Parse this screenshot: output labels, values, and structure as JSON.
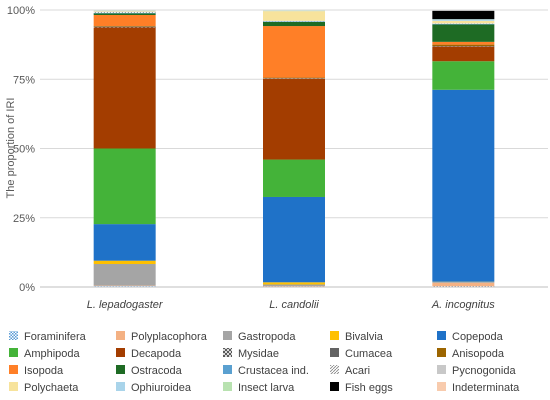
{
  "chart_data": {
    "type": "bar",
    "stacked": true,
    "title": "",
    "xlabel": "",
    "ylabel": "The proportion of IRI",
    "ylim": [
      0,
      100
    ],
    "yticks": [
      "0%",
      "25%",
      "50%",
      "75%",
      "100%"
    ],
    "grid": true,
    "legend": "bottom",
    "categories": [
      "L. lepadogaster",
      "L. candolii",
      "A. incognitus"
    ],
    "series": [
      {
        "name": "Foraminifera",
        "color": "#5b9bd5",
        "pattern": "checker",
        "values": [
          0.3,
          0.1,
          0.2
        ]
      },
      {
        "name": "Polyplacophora",
        "color": "#f4b183",
        "values": [
          0.2,
          0.2,
          1.3
        ]
      },
      {
        "name": "Gastropoda",
        "color": "#a5a5a5",
        "values": [
          7.8,
          0.6,
          0.3
        ]
      },
      {
        "name": "Bivalvia",
        "color": "#ffc000",
        "values": [
          1.2,
          0.8,
          0.1
        ]
      },
      {
        "name": "Copepoda",
        "color": "#1f72c8",
        "values": [
          13.2,
          30.8,
          69.3
        ]
      },
      {
        "name": "Amphipoda",
        "color": "#44b339",
        "values": [
          27.3,
          13.5,
          10.3
        ]
      },
      {
        "name": "Decapoda",
        "color": "#a33d00",
        "values": [
          43.7,
          29.2,
          5.3
        ]
      },
      {
        "name": "Mysidae",
        "color": "#404040",
        "pattern": "cross",
        "values": [
          0.2,
          0.1,
          0.1
        ]
      },
      {
        "name": "Cumacea",
        "color": "#636363",
        "values": [
          0.1,
          0.1,
          0.1
        ]
      },
      {
        "name": "Anisopoda",
        "color": "#9c6500",
        "values": [
          0.2,
          0.2,
          0.5
        ]
      },
      {
        "name": "Isopoda",
        "color": "#ff7f27",
        "values": [
          4.0,
          18.6,
          1.0
        ]
      },
      {
        "name": "Ostracoda",
        "color": "#1e6b24",
        "values": [
          0.6,
          1.5,
          6.3
        ]
      },
      {
        "name": "Crustacea ind.",
        "color": "#5aa0d0",
        "values": [
          0.2,
          0.2,
          0.2
        ]
      },
      {
        "name": "Acari",
        "color": "#b0b0b0",
        "pattern": "diag",
        "values": [
          0.3,
          0.1,
          0.1
        ]
      },
      {
        "name": "Pycnogonida",
        "color": "#c8c8c8",
        "values": [
          0.1,
          0.1,
          0.1
        ]
      },
      {
        "name": "Polychaeta",
        "color": "#f7e39c",
        "values": [
          0.2,
          3.5,
          0.9
        ]
      },
      {
        "name": "Ophiuroidea",
        "color": "#a9d4ea",
        "values": [
          0.1,
          0.1,
          0.5
        ]
      },
      {
        "name": "Insect larva",
        "color": "#b8e2b0",
        "values": [
          0.1,
          0.1,
          0.1
        ]
      },
      {
        "name": "Fish eggs",
        "color": "#000000",
        "values": [
          0.0,
          0.0,
          3.0
        ]
      },
      {
        "name": "Indeterminata",
        "color": "#f8cbad",
        "values": [
          0.0,
          0.0,
          0.0
        ]
      }
    ]
  }
}
